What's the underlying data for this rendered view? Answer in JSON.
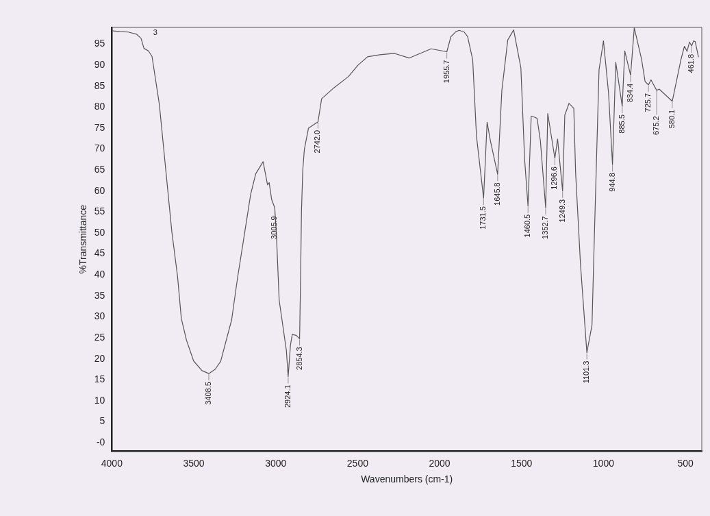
{
  "chart_data": {
    "type": "line",
    "xlabel": "Wavenumbers (cm-1)",
    "ylabel": "%Transmittance",
    "xlim": [
      4000,
      400
    ],
    "xticks": [
      4000,
      3500,
      3000,
      2500,
      2000,
      1500,
      1000,
      500
    ],
    "ylim": [
      -2,
      99
    ],
    "yticks": [
      {
        "value": 0,
        "label": "-0"
      },
      5,
      10,
      15,
      20,
      25,
      30,
      35,
      40,
      45,
      50,
      55,
      60,
      65,
      70,
      75,
      80,
      85,
      90,
      95
    ],
    "grid": false,
    "legend": false,
    "marker": "none",
    "line_style": "solid",
    "series": [
      {
        "color": "#555555",
        "x": [
          4000,
          3950,
          3900,
          3850,
          3822,
          3804,
          3777,
          3755,
          3710,
          3634,
          3599,
          3576,
          3545,
          3501,
          3450,
          3408.5,
          3370,
          3336,
          3269,
          3233,
          3193,
          3153,
          3122,
          3077,
          3050,
          3040,
          3025,
          3005.9,
          2995,
          2979,
          2957,
          2935,
          2924.1,
          2910,
          2899,
          2875,
          2854.3,
          2848,
          2843,
          2835,
          2825,
          2800,
          2742,
          2720,
          2645,
          2556,
          2498,
          2440,
          2364,
          2275,
          2186,
          2052,
          1955.7,
          1931,
          1900,
          1880,
          1850,
          1829,
          1798,
          1775,
          1731.5,
          1710,
          1690,
          1645.8,
          1620,
          1584,
          1548,
          1504,
          1481,
          1460.5,
          1441,
          1420,
          1405,
          1385,
          1352.7,
          1340,
          1296.6,
          1280,
          1249.3,
          1236,
          1210,
          1181,
          1170,
          1140,
          1101.3,
          1070,
          1055,
          1027,
          1000,
          969,
          944.8,
          925,
          885.5,
          870,
          834.4,
          812,
          768,
          746,
          725.7,
          710,
          675.2,
          660,
          580.1,
          528,
          506,
          490,
          475,
          461.8,
          450,
          440,
          420
        ],
        "values": [
          98.2,
          98.0,
          97.9,
          97.4,
          96.4,
          94.0,
          93.4,
          92.1,
          80.6,
          50.3,
          39.6,
          29.6,
          24.5,
          19.5,
          17.2,
          16.5,
          17.5,
          19.4,
          29.3,
          39.3,
          49.2,
          59.2,
          64.1,
          67.0,
          61.5,
          62.0,
          58,
          56,
          49,
          34,
          28,
          22,
          15.8,
          23.3,
          25.8,
          25.6,
          24.8,
          40,
          55,
          65,
          70,
          75,
          76.5,
          82,
          84.6,
          87.3,
          90,
          92,
          92.5,
          92.8,
          91.7,
          93.9,
          93.2,
          96.8,
          98,
          98.3,
          97.9,
          96.8,
          91.3,
          73.1,
          58.3,
          76.4,
          72,
          64.0,
          84,
          96,
          98.4,
          89.4,
          67.5,
          56.4,
          77.8,
          77.6,
          77.3,
          72,
          56,
          78.5,
          67.8,
          72.4,
          60,
          78.1,
          80.9,
          79.7,
          64.4,
          42.4,
          21.5,
          28,
          50,
          88.9,
          95.8,
          83.4,
          66.3,
          90.7,
          80.2,
          93.4,
          87.6,
          98.9,
          91.5,
          86.1,
          85.3,
          86.5,
          84.0,
          84.3,
          81.4,
          91.2,
          94.5,
          93.3,
          95.5,
          94.6,
          95.8,
          95.6,
          91.9
        ]
      }
    ],
    "annotations": [
      "3",
      {
        "text": "3408.5",
        "x": 3408.5,
        "y": 16.5
      },
      {
        "text": "3005.9",
        "x": 3005.9,
        "y": 56
      },
      {
        "text": "2924.1",
        "x": 2924.1,
        "y": 15.8
      },
      {
        "text": "2854.3",
        "x": 2854.3,
        "y": 24.8
      },
      {
        "text": "2742.0",
        "x": 2742,
        "y": 76.5
      },
      {
        "text": "1955.7",
        "x": 1955.7,
        "y": 93.2
      },
      {
        "text": "1731.5",
        "x": 1731.5,
        "y": 58.3
      },
      {
        "text": "1645.8",
        "x": 1645.8,
        "y": 64.0
      },
      {
        "text": "1460.5",
        "x": 1460.5,
        "y": 56.4
      },
      {
        "text": "1352.7",
        "x": 1352.7,
        "y": 56
      },
      {
        "text": "1296.6",
        "x": 1296.6,
        "y": 67.8
      },
      {
        "text": "1249.3",
        "x": 1249.3,
        "y": 60
      },
      {
        "text": "1101.3",
        "x": 1101.3,
        "y": 21.5
      },
      {
        "text": "944.8",
        "x": 944.8,
        "y": 66.3
      },
      {
        "text": "885.5",
        "x": 885.5,
        "y": 80.2
      },
      {
        "text": "834.4",
        "x": 834.4,
        "y": 87.6
      },
      {
        "text": "725.7",
        "x": 725.7,
        "y": 85.3
      },
      {
        "text": "675.2",
        "x": 675.2,
        "y": 84.0
      },
      {
        "text": "580.1",
        "x": 580.1,
        "y": 81.4
      },
      {
        "text": "461.8",
        "x": 461.8,
        "y": 94.6
      }
    ]
  }
}
